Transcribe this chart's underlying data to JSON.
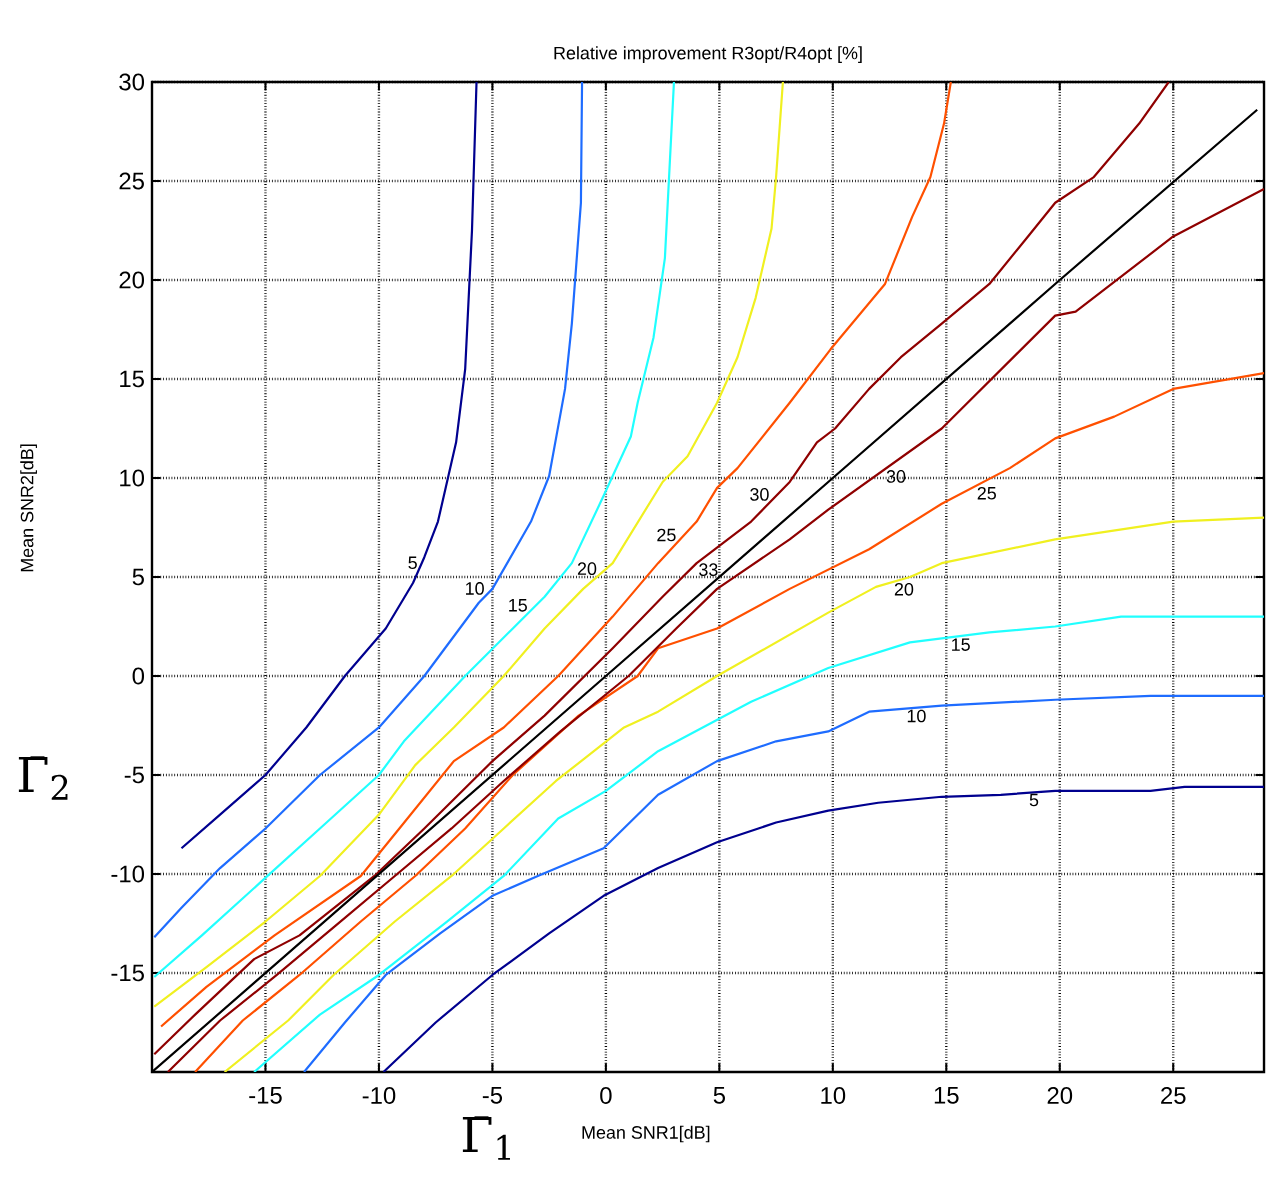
{
  "chart_data": {
    "type": "line",
    "title": "Relative improvement R3opt/R4opt [%]",
    "xlabel": "Mean SNR1[dB]",
    "ylabel": "Mean SNR2[dB]",
    "annotations": [
      "Γ̄$_{1}$",
      "Γ̄$_{2}$"
    ],
    "xlim": [
      -20,
      29
    ],
    "ylim": [
      -20,
      30
    ],
    "xticks": [
      -15,
      -10,
      -5,
      0,
      5,
      10,
      15,
      20,
      25
    ],
    "yticks": [
      -15,
      -10,
      -5,
      0,
      5,
      10,
      15,
      20,
      25,
      30
    ],
    "grid": true,
    "marker": "none",
    "line_style": "solid",
    "series": [
      {
        "name": "5",
        "color": "#00008f",
        "x": [
          -5.7,
          -5.9,
          -6.2,
          -6.6,
          -7.4,
          -8.0,
          -8.5,
          -9.7,
          -11.5,
          -13.2,
          -15.0,
          -17.0,
          -18.7
        ],
        "values": [
          30,
          22.5,
          15.5,
          11.8,
          7.8,
          6.0,
          4.7,
          2.4,
          0,
          -2.6,
          -5.0,
          -7.0,
          -8.7
        ]
      },
      {
        "name": "5",
        "color": "#00008f",
        "x": [
          -9.8,
          -7.5,
          -5.0,
          -2.5,
          -0.1,
          2.3,
          4.9,
          7.5,
          9.8,
          12.0,
          14.8,
          17.4,
          19.8,
          24.0,
          25.5,
          29.0
        ],
        "values": [
          -20,
          -17.5,
          -15.1,
          -13.0,
          -11.1,
          -9.7,
          -8.4,
          -7.4,
          -6.8,
          -6.4,
          -6.1,
          -6.0,
          -5.8,
          -5.8,
          -5.6,
          -5.6
        ]
      },
      {
        "name": "10",
        "color": "#1e6cff",
        "x": [
          -1.05,
          -1.1,
          -1.5,
          -1.8,
          -2.5,
          -3.3,
          -5.0,
          -5.6,
          -8.0,
          -10.0,
          -12.6,
          -15.0,
          -17.0,
          -18.7,
          -19.9
        ],
        "values": [
          30,
          23.9,
          17.8,
          14.5,
          10.1,
          7.8,
          4.4,
          3.7,
          0,
          -2.6,
          -5.0,
          -7.7,
          -9.7,
          -11.7,
          -13.2
        ]
      },
      {
        "name": "10",
        "color": "#1e6cff",
        "x": [
          -13.3,
          -11.5,
          -9.7,
          -7.3,
          -5.0,
          -3.0,
          -0.1,
          2.3,
          4.9,
          7.5,
          9.8,
          11.6,
          14.8,
          19.8,
          24.0,
          29.0
        ],
        "values": [
          -20,
          -17.5,
          -15.1,
          -13.0,
          -11.1,
          -10.1,
          -8.7,
          -6.0,
          -4.3,
          -3.3,
          -2.8,
          -1.8,
          -1.5,
          -1.2,
          -1.0,
          -1.0
        ]
      },
      {
        "name": "15",
        "color": "#20ffff",
        "x": [
          3.0,
          2.6,
          2.1,
          1.4,
          1.1,
          -0.1,
          -1.5,
          -2.7,
          -4.1,
          -6.2,
          -8.9,
          -10.0,
          -12.6,
          -15.2,
          -17.8,
          -19.9
        ],
        "values": [
          30,
          21.1,
          17.1,
          13.8,
          12.1,
          9.1,
          5.7,
          4.0,
          2.4,
          0,
          -3.3,
          -5.0,
          -7.7,
          -10.4,
          -13.1,
          -15.2
        ]
      },
      {
        "name": "15",
        "color": "#20ffff",
        "x": [
          -15.5,
          -12.6,
          -10.0,
          -7.0,
          -4.5,
          -2.1,
          0.0,
          2.3,
          6.4,
          9.8,
          13.4,
          16.9,
          19.8,
          22.7,
          29.0
        ],
        "values": [
          -20,
          -17.1,
          -15.1,
          -12.4,
          -10.1,
          -7.2,
          -5.8,
          -3.8,
          -1.3,
          0.4,
          1.7,
          2.2,
          2.5,
          3.0,
          3.0
        ]
      },
      {
        "name": "20",
        "color": "#f0f020",
        "x": [
          7.8,
          7.5,
          7.3,
          6.6,
          5.8,
          4.9,
          3.6,
          2.5,
          0.3,
          -1.0,
          -2.7,
          -4.5,
          -6.7,
          -8.4,
          -10.0,
          -12.6,
          -15.0,
          -17.6,
          -19.9
        ],
        "values": [
          30,
          25.2,
          22.6,
          19.1,
          16.1,
          13.8,
          11.1,
          9.8,
          5.7,
          4.4,
          2.4,
          0,
          -2.6,
          -4.5,
          -7.0,
          -10.1,
          -12.4,
          -14.7,
          -16.7
        ]
      },
      {
        "name": "20",
        "color": "#f0f020",
        "x": [
          -16.8,
          -14.0,
          -12.0,
          -9.3,
          -6.8,
          -4.5,
          -2.2,
          0.8,
          2.3,
          4.9,
          9.8,
          11.9,
          13.4,
          14.8,
          19.8,
          25.0,
          29.0
        ],
        "values": [
          -20,
          -17.4,
          -15.1,
          -12.4,
          -10.1,
          -7.7,
          -5.3,
          -2.6,
          -1.8,
          0,
          3.2,
          4.5,
          5.0,
          5.7,
          6.9,
          7.8,
          8.0
        ]
      },
      {
        "name": "25",
        "color": "#ff5000",
        "x": [
          15.2,
          14.9,
          14.3,
          13.5,
          12.3,
          9.9,
          8.1,
          5.8,
          4.9,
          4.0,
          2.3,
          0.3,
          -2.1,
          -4.5,
          -6.7,
          -9.1,
          -10.8,
          -14.6,
          -17.6,
          -19.6
        ],
        "values": [
          30,
          27.9,
          25.2,
          23.2,
          19.8,
          16.5,
          13.8,
          10.5,
          9.5,
          7.8,
          5.7,
          3.0,
          0,
          -2.6,
          -4.3,
          -7.7,
          -10.1,
          -13.1,
          -15.7,
          -17.7
        ]
      },
      {
        "name": "25",
        "color": "#ff5000",
        "x": [
          -18.1,
          -16.0,
          -13.5,
          -10.8,
          -8.4,
          -6.2,
          -4.1,
          -1.2,
          1.4,
          2.3,
          4.9,
          8.1,
          11.6,
          14.8,
          17.8,
          19.8,
          22.4,
          25.0,
          29.0
        ],
        "values": [
          -20,
          -17.4,
          -15.1,
          -12.4,
          -10.1,
          -7.7,
          -5.0,
          -2.0,
          0,
          1.4,
          2.4,
          4.4,
          6.4,
          8.7,
          10.5,
          12.0,
          13.1,
          14.5,
          15.3
        ]
      },
      {
        "name": "30",
        "color": "#8f0000",
        "x": [
          24.8,
          23.5,
          21.5,
          19.8,
          18.6,
          16.9,
          14.8,
          13.0,
          11.6,
          10.1,
          9.3,
          8.1,
          6.4,
          4.0,
          2.5,
          0.3,
          -2.7,
          -5.0,
          -8.0,
          -10.2,
          -13.5,
          -15.5,
          -18.1,
          -19.9
        ],
        "values": [
          30,
          27.9,
          25.2,
          23.9,
          22.2,
          19.8,
          17.8,
          16.1,
          14.5,
          12.5,
          11.8,
          9.8,
          7.8,
          5.7,
          4.0,
          1.4,
          -2.0,
          -4.3,
          -7.7,
          -10.1,
          -13.1,
          -14.3,
          -17.1,
          -19.1
        ]
      },
      {
        "name": "30",
        "color": "#8f0000",
        "x": [
          -19.3,
          -17.0,
          -14.5,
          -12.0,
          -9.3,
          -6.8,
          -4.5,
          -2.0,
          1.0,
          3.1,
          4.9,
          8.1,
          9.8,
          14.8,
          19.8,
          20.7,
          25.0,
          29.0
        ],
        "values": [
          -20,
          -17.4,
          -15.1,
          -12.7,
          -10.1,
          -7.7,
          -5.3,
          -2.8,
          0,
          2.4,
          4.4,
          6.9,
          8.4,
          12.5,
          18.2,
          18.4,
          22.2,
          24.6
        ]
      },
      {
        "name": "33",
        "color": "#000000",
        "x": [
          -20,
          0,
          10,
          20,
          28.7
        ],
        "values": [
          -20,
          0,
          10,
          20,
          28.6
        ]
      }
    ]
  }
}
